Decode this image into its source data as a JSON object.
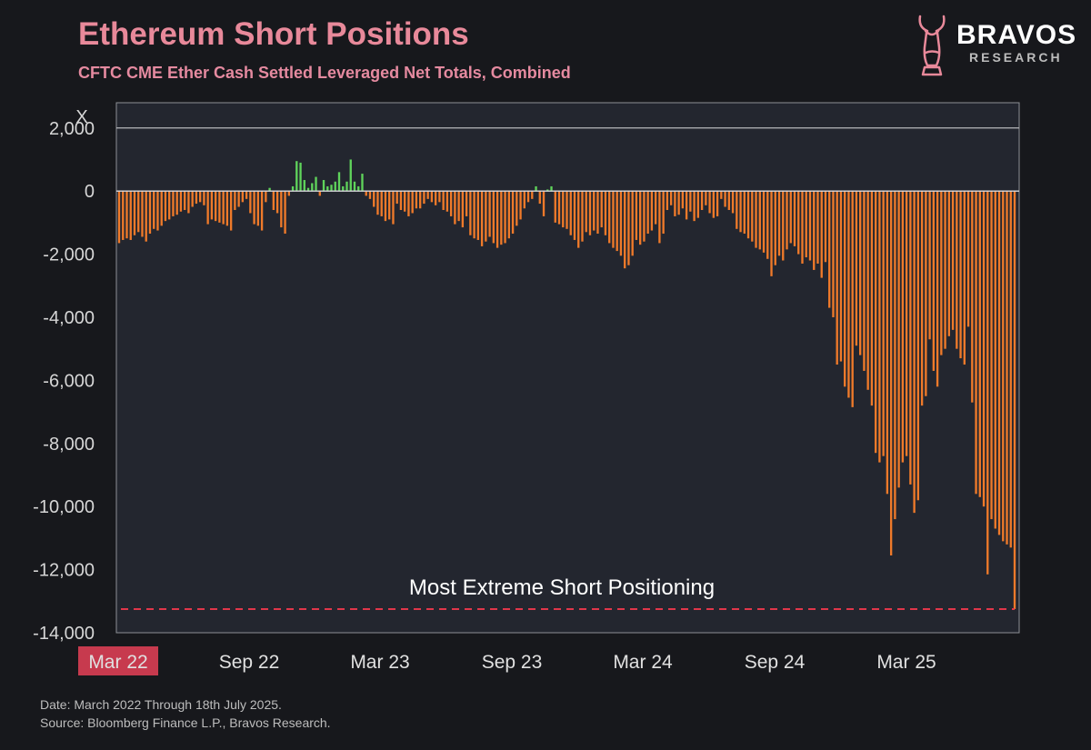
{
  "header": {
    "title": "Ethereum Short Positions",
    "subtitle": "CFTC CME Ether Cash Settled Leveraged Net Totals, Combined"
  },
  "logo": {
    "name": "BRAVOS",
    "sub": "RESEARCH"
  },
  "footer": {
    "date": "Date: March 2022 Through 18th July 2025.",
    "source": "Source: Bloomberg Finance L.P., Bravos Research."
  },
  "colors": {
    "positive": "#5fd35b",
    "negative": "#ef7a2a",
    "highlight": "#c73a4e",
    "reference": "#e0364a"
  },
  "chart_data": {
    "type": "bar",
    "ylabel": "X",
    "ylim": [
      -14000,
      2800
    ],
    "y_ticks": [
      2000,
      0,
      -2000,
      -4000,
      -6000,
      -8000,
      -10000,
      -12000,
      -14000
    ],
    "y_tick_labels": [
      "2,000",
      "0",
      "-2,000",
      "-4,000",
      "-6,000",
      "-8,000",
      "-10,000",
      "-12,000",
      "-14,000"
    ],
    "x_tick_labels": [
      "Mar 22",
      "Sep 22",
      "Mar 23",
      "Sep 23",
      "Mar 24",
      "Sep 24",
      "Mar 25"
    ],
    "highlighted_x_tick": "Mar 22",
    "reference_line": {
      "value": -13250,
      "label": "Most Extreme Short Positioning"
    },
    "grid": false,
    "values": [
      -1650,
      -1550,
      -1500,
      -1550,
      -1400,
      -1300,
      -1450,
      -1600,
      -1350,
      -1200,
      -1250,
      -1100,
      -950,
      -900,
      -800,
      -750,
      -650,
      -600,
      -700,
      -500,
      -400,
      -350,
      -450,
      -1050,
      -900,
      -950,
      -1000,
      -1050,
      -1100,
      -1250,
      -600,
      -500,
      -350,
      -250,
      -700,
      -1050,
      -1100,
      -1250,
      -350,
      100,
      -600,
      -700,
      -1150,
      -1350,
      -150,
      150,
      950,
      900,
      350,
      100,
      250,
      450,
      -150,
      350,
      150,
      200,
      300,
      600,
      150,
      300,
      1000,
      300,
      150,
      550,
      -150,
      -250,
      -500,
      -750,
      -800,
      -950,
      -900,
      -1050,
      -400,
      -600,
      -650,
      -800,
      -700,
      -550,
      -550,
      -400,
      -250,
      -350,
      -450,
      -350,
      -600,
      -650,
      -800,
      -1050,
      -950,
      -1150,
      -800,
      -1400,
      -1500,
      -1550,
      -1750,
      -1600,
      -1450,
      -1650,
      -1800,
      -1700,
      -1650,
      -1500,
      -1350,
      -1100,
      -900,
      -550,
      -350,
      -250,
      150,
      -400,
      -800,
      50,
      150,
      -1000,
      -1050,
      -1150,
      -1200,
      -1400,
      -1550,
      -1800,
      -1600,
      -1300,
      -1400,
      -1250,
      -1350,
      -1150,
      -1400,
      -1650,
      -1800,
      -1900,
      -2050,
      -2450,
      -2350,
      -2050,
      -1550,
      -1700,
      -1600,
      -1350,
      -1250,
      -1050,
      -1650,
      -1350,
      -600,
      -450,
      -800,
      -750,
      -550,
      -900,
      -650,
      -950,
      -850,
      -600,
      -450,
      -700,
      -850,
      -800,
      -250,
      -500,
      -600,
      -700,
      -1200,
      -1300,
      -1350,
      -1500,
      -1600,
      -1800,
      -1850,
      -1950,
      -2150,
      -2700,
      -2350,
      -2050,
      -2200,
      -1850,
      -1650,
      -1750,
      -2000,
      -2300,
      -2100,
      -2200,
      -2500,
      -2300,
      -2750,
      -2250,
      -3700,
      -4000,
      -5500,
      -5400,
      -6200,
      -6550,
      -6850,
      -4900,
      -5200,
      -5700,
      -6300,
      -6800,
      -8300,
      -8600,
      -8400,
      -9600,
      -11550,
      -10400,
      -9400,
      -8600,
      -8400,
      -9300,
      -10200,
      -9800,
      -6800,
      -6500,
      -4700,
      -5700,
      -6200,
      -5200,
      -5000,
      -4600,
      -4400,
      -5000,
      -5300,
      -5500,
      -4300,
      -6700,
      -9600,
      -9700,
      -10000,
      -12150,
      -10400,
      -10700,
      -10900,
      -11100,
      -11200,
      -11300,
      -13250
    ]
  }
}
